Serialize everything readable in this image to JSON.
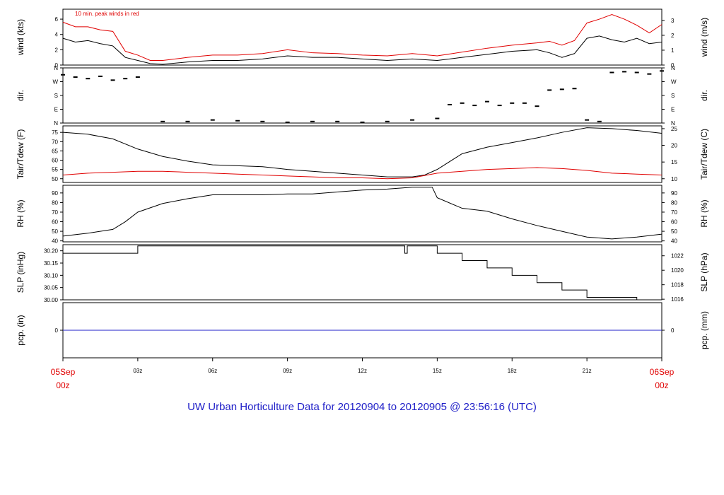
{
  "title": "UW Urban Horticulture Data for 20120904  to  20120905 @ 23:56:16  (UTC)",
  "colors": {
    "primary": "#000000",
    "secondary": "#e00000",
    "precip": "#2020c8",
    "title": "#2020c8"
  },
  "x_axis": {
    "start_label": [
      "05Sep",
      "00z"
    ],
    "end_label": [
      "06Sep",
      "00z"
    ],
    "ticks": [
      "03z",
      "06z",
      "09z",
      "12z",
      "15z",
      "18z",
      "21z"
    ],
    "range_hours": [
      0,
      24
    ]
  },
  "chart_data": [
    {
      "type": "line",
      "ylabel_left": "wind (kts)",
      "ylabel_right": "wind (m/s)",
      "annotation": "10 min. peak winds in red",
      "yticks_left": [
        "0",
        "2",
        "4",
        "6"
      ],
      "yticks_right": [
        "0",
        "1",
        "2",
        "3"
      ],
      "ylim": [
        0,
        7.3
      ],
      "series": [
        {
          "role": "sustained",
          "color": "#000000",
          "x": [
            0,
            0.5,
            1,
            1.5,
            2,
            2.5,
            3,
            3.5,
            4,
            5,
            6,
            7,
            8,
            9,
            10,
            11,
            12,
            13,
            14,
            15,
            16,
            17,
            18,
            19,
            19.5,
            20,
            20.5,
            21,
            21.5,
            22,
            22.5,
            23,
            23.5,
            24
          ],
          "values": [
            3.5,
            3,
            3.2,
            2.8,
            2.5,
            1,
            0.6,
            0.2,
            0.1,
            0.4,
            0.6,
            0.6,
            0.8,
            1.2,
            1,
            1,
            0.8,
            0.6,
            0.8,
            0.6,
            1,
            1.4,
            1.8,
            2,
            1.6,
            1,
            1.5,
            3.5,
            3.8,
            3.3,
            3,
            3.5,
            2.8,
            3
          ]
        },
        {
          "role": "peak",
          "color": "#e00000",
          "x": [
            0,
            0.5,
            1,
            1.5,
            2,
            2.5,
            3,
            3.5,
            4,
            5,
            6,
            7,
            8,
            9,
            10,
            11,
            12,
            13,
            14,
            15,
            16,
            17,
            18,
            19,
            19.5,
            20,
            20.5,
            21,
            21.5,
            22,
            22.5,
            23,
            23.5,
            24
          ],
          "values": [
            5.6,
            5,
            5,
            4.6,
            4.4,
            1.8,
            1.3,
            0.6,
            0.6,
            1,
            1.3,
            1.3,
            1.5,
            2,
            1.6,
            1.5,
            1.3,
            1.2,
            1.5,
            1.2,
            1.7,
            2.2,
            2.6,
            2.9,
            3.1,
            2.6,
            3.2,
            5.5,
            6,
            6.6,
            6,
            5.2,
            4.2,
            5.3
          ]
        }
      ]
    },
    {
      "type": "scatter",
      "ylabel_left": "dir.",
      "ylabel_right": "dir.",
      "yticks_left": [
        "N",
        "E",
        "S",
        "W",
        "N"
      ],
      "yticks_right": [
        "N",
        "E",
        "S",
        "W",
        "N"
      ],
      "ylim": [
        0,
        360
      ],
      "series": [
        {
          "color": "#000000",
          "x": [
            0,
            0.5,
            1,
            1.5,
            2,
            2.5,
            3,
            4,
            5,
            6,
            7,
            8,
            9,
            10,
            11,
            12,
            13,
            14,
            15,
            15.5,
            16,
            16.5,
            17,
            17.5,
            18,
            18.5,
            19,
            19.5,
            20,
            20.5,
            21,
            21.5,
            22,
            22.5,
            23,
            23.5,
            24
          ],
          "values": [
            315,
            300,
            290,
            305,
            280,
            290,
            300,
            10,
            10,
            20,
            15,
            10,
            5,
            10,
            10,
            5,
            10,
            20,
            30,
            120,
            130,
            115,
            140,
            115,
            130,
            130,
            110,
            215,
            220,
            225,
            20,
            10,
            330,
            335,
            330,
            320,
            340
          ]
        }
      ]
    },
    {
      "type": "line",
      "ylabel_left": "Tair/Tdew (F)",
      "ylabel_right": "Tair/Tdew (C)",
      "yticks_left": [
        "50",
        "55",
        "60",
        "65",
        "70",
        "75"
      ],
      "yticks_right": [
        "10",
        "15",
        "20",
        "25"
      ],
      "ylim": [
        48,
        78.5
      ],
      "series": [
        {
          "role": "air temperature",
          "color": "#000000",
          "x": [
            0,
            1,
            2,
            3,
            4,
            5,
            6,
            7,
            8,
            9,
            10,
            11,
            12,
            13,
            14,
            14.5,
            15,
            16,
            17,
            18,
            19,
            20,
            21,
            22,
            23,
            24
          ],
          "values": [
            75,
            74,
            71.5,
            66,
            62,
            59.5,
            57.5,
            57,
            56.5,
            55,
            54,
            53,
            52,
            51,
            51,
            52,
            55,
            63.5,
            67,
            69.5,
            72,
            75,
            77.5,
            77,
            76,
            74.5
          ]
        },
        {
          "role": "dew point",
          "color": "#e00000",
          "x": [
            0,
            1,
            2,
            3,
            4,
            5,
            6,
            7,
            8,
            9,
            10,
            11,
            12,
            13,
            14,
            15,
            16,
            17,
            18,
            19,
            20,
            21,
            22,
            23,
            24
          ],
          "values": [
            52,
            53,
            53.5,
            54,
            54,
            53.5,
            53,
            52.5,
            52,
            51.5,
            51,
            50.5,
            50.5,
            50,
            50.5,
            53,
            54,
            55,
            55.5,
            56,
            55.5,
            54.5,
            53,
            52.5,
            52
          ]
        }
      ]
    },
    {
      "type": "line",
      "ylabel_left": "RH (%)",
      "ylabel_right": "RH (%)",
      "yticks_left": [
        "40",
        "50",
        "60",
        "70",
        "80",
        "90"
      ],
      "yticks_right": [
        "40",
        "50",
        "60",
        "70",
        "80",
        "90"
      ],
      "ylim": [
        39,
        98
      ],
      "series": [
        {
          "color": "#000000",
          "x": [
            0,
            1,
            2,
            2.5,
            3,
            4,
            5,
            6,
            7,
            8,
            9,
            10,
            11,
            12,
            13,
            14,
            14.8,
            15,
            16,
            17,
            18,
            19,
            20,
            21,
            22,
            23,
            24
          ],
          "values": [
            45,
            48,
            52,
            60,
            70,
            79,
            84,
            88,
            88,
            88,
            89,
            89,
            91,
            93,
            94,
            96,
            96,
            85,
            74,
            71,
            63,
            56,
            50,
            44,
            42,
            44,
            47
          ]
        }
      ]
    },
    {
      "type": "line",
      "ylabel_left": "SLP (inHg)",
      "ylabel_right": "SLP (hPa)",
      "yticks_left": [
        "30.00",
        "30.05",
        "30.10",
        "30.15",
        "30.20"
      ],
      "yticks_right": [
        "1016",
        "1018",
        "1020",
        "1022"
      ],
      "ylim": [
        30.0,
        30.225
      ],
      "series": [
        {
          "color": "#000000",
          "step": true,
          "x": [
            0,
            3,
            13.7,
            13.8,
            15,
            16,
            17,
            18,
            19,
            20,
            21,
            22,
            23,
            24
          ],
          "values": [
            30.19,
            30.22,
            30.19,
            30.22,
            30.19,
            30.16,
            30.13,
            30.1,
            30.07,
            30.04,
            30.01,
            30.01,
            30.0,
            30.0
          ]
        }
      ]
    },
    {
      "type": "line",
      "ylabel_left": "pcp. (in)",
      "ylabel_right": "pcp. (mm)",
      "yticks_left": [
        "0"
      ],
      "yticks_right": [
        "0"
      ],
      "ylim": [
        -1,
        1
      ],
      "series": [
        {
          "color": "#2020c8",
          "x": [
            0,
            24
          ],
          "values": [
            0,
            0
          ]
        }
      ]
    }
  ]
}
